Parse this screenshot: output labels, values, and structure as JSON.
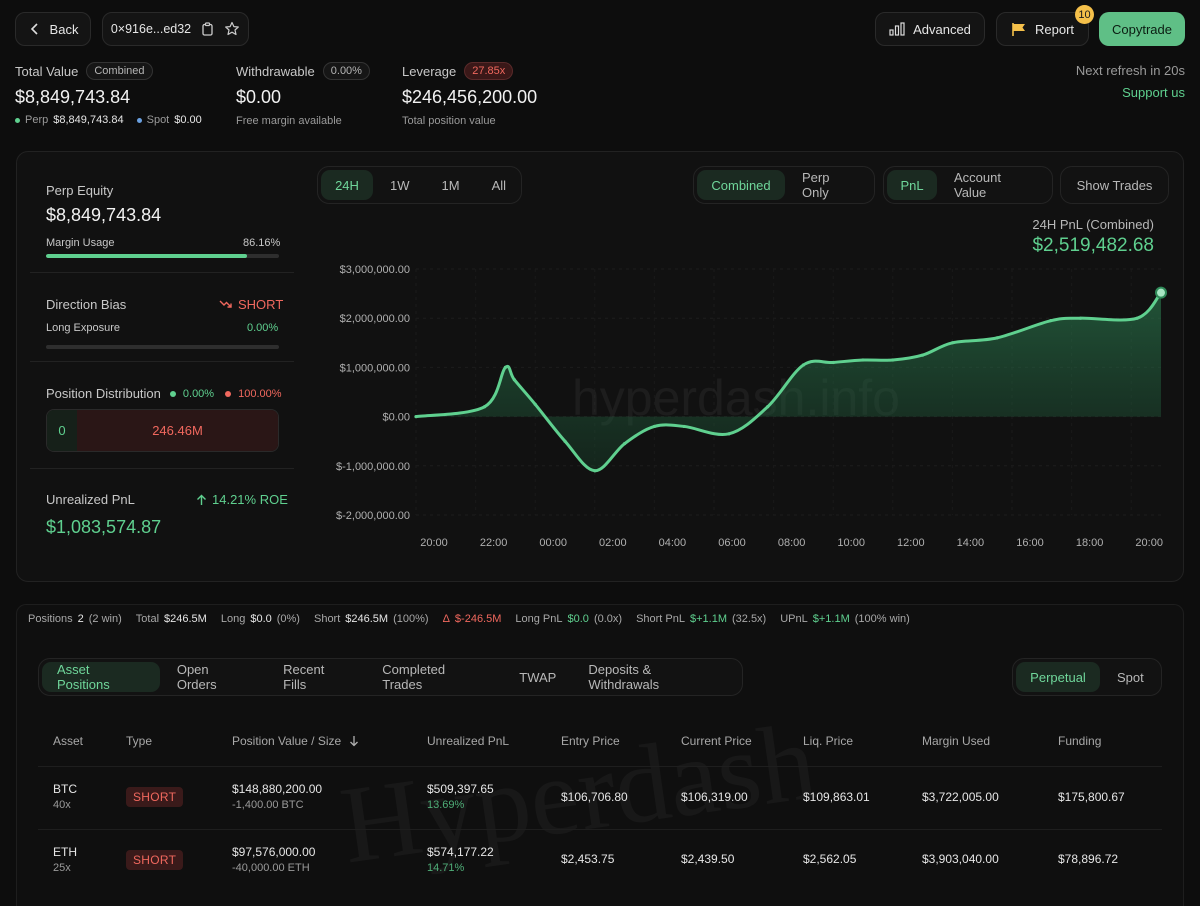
{
  "header": {
    "back_label": "Back",
    "address": "0×916e...ed32",
    "advanced_label": "Advanced",
    "report_label": "Report",
    "report_badge": "10",
    "copytrade_label": "Copytrade",
    "next_refresh": "Next refresh in 20s",
    "support": "Support us"
  },
  "summary": {
    "total_value_label": "Total Value",
    "total_value_pill": "Combined",
    "total_value": "$8,849,743.84",
    "perp_label": "Perp",
    "perp_value": "$8,849,743.84",
    "spot_label": "Spot",
    "spot_value": "$0.00",
    "withdrawable_label": "Withdrawable",
    "withdrawable_pill": "0.00%",
    "withdrawable_value": "$0.00",
    "withdrawable_sub": "Free margin available",
    "leverage_label": "Leverage",
    "leverage_pill": "27.85x",
    "leverage_value": "$246,456,200.00",
    "leverage_sub": "Total position value"
  },
  "left_panel": {
    "perp_equity_label": "Perp Equity",
    "perp_equity": "$8,849,743.84",
    "margin_usage_label": "Margin Usage",
    "margin_usage": "86.16%",
    "margin_usage_fraction": 0.8616,
    "direction_bias_label": "Direction Bias",
    "direction_bias": "SHORT",
    "long_exposure_label": "Long Exposure",
    "long_exposure": "0.00%",
    "long_exposure_fraction": 0,
    "position_dist_label": "Position Distribution",
    "dist_long_pct": "0.00%",
    "dist_short_pct": "100.00%",
    "dist_long_value": "0",
    "dist_short_value": "246.46M",
    "unrealized_label": "Unrealized PnL",
    "roe": "14.21% ROE",
    "unrealized_value": "$1,083,574.87"
  },
  "chart_controls": {
    "ranges": [
      "24H",
      "1W",
      "1M",
      "All"
    ],
    "active_range": "24H",
    "modes": [
      "Combined",
      "Perp Only"
    ],
    "active_mode": "Combined",
    "metrics": [
      "PnL",
      "Account Value"
    ],
    "active_metric": "PnL",
    "show_trades": "Show Trades"
  },
  "chart_data": {
    "type": "area",
    "title": "24H PnL (Combined)",
    "headline_value": "$2,519,482.68",
    "x_ticks": [
      "20:00",
      "22:00",
      "00:00",
      "02:00",
      "04:00",
      "06:00",
      "08:00",
      "10:00",
      "12:00",
      "14:00",
      "16:00",
      "18:00",
      "20:00"
    ],
    "y_ticks": [
      "$3,000,000.00",
      "$2,000,000.00",
      "$1,000,000.00",
      "$0.00",
      "$-1,000,000.00",
      "$-2,000,000.00"
    ],
    "ylim": [
      -2000000,
      3000000
    ],
    "x_hours": [
      0,
      2.3,
      3,
      3.3,
      4,
      5,
      6,
      7,
      8,
      9,
      10.5,
      11.8,
      13,
      14,
      15,
      16,
      17,
      18,
      19.5,
      21.3,
      22.3,
      24.2,
      25
    ],
    "values": [
      0,
      200000,
      1000000,
      750000,
      250000,
      -500000,
      -1100000,
      -550000,
      -200000,
      -200000,
      -350000,
      200000,
      1050000,
      1100000,
      1150000,
      1150000,
      1250000,
      1500000,
      1600000,
      1950000,
      2000000,
      2000000,
      2519482.68
    ],
    "grid": true,
    "watermark": "hyperdash.info"
  },
  "stats_bar": {
    "positions_label": "Positions",
    "positions_value": "2",
    "positions_sub": "(2 win)",
    "total_label": "Total",
    "total_value": "$246.5M",
    "long_label": "Long",
    "long_value": "$0.0",
    "long_sub": "(0%)",
    "short_label": "Short",
    "short_value": "$246.5M",
    "short_sub": "(100%)",
    "delta_label": "Δ",
    "delta_value": "$-246.5M",
    "long_pnl_label": "Long PnL",
    "long_pnl_value": "$0.0",
    "long_pnl_sub": "(0.0x)",
    "short_pnl_label": "Short PnL",
    "short_pnl_value": "$+1.1M",
    "short_pnl_sub": "(32.5x)",
    "upnl_label": "UPnL",
    "upnl_value": "$+1.1M",
    "upnl_sub": "(100% win)"
  },
  "tabs": {
    "items": [
      "Asset Positions",
      "Open Orders",
      "Recent Fills",
      "Completed Trades",
      "TWAP",
      "Deposits & Withdrawals"
    ],
    "active": "Asset Positions",
    "market": [
      "Perpetual",
      "Spot"
    ],
    "active_market": "Perpetual"
  },
  "table": {
    "headers": [
      "Asset",
      "Type",
      "Position Value / Size",
      "Unrealized PnL",
      "Entry Price",
      "Current Price",
      "Liq. Price",
      "Margin Used",
      "Funding"
    ],
    "rows": [
      {
        "asset": "BTC",
        "leverage": "40x",
        "type": "SHORT",
        "value": "$148,880,200.00",
        "size": "-1,400.00 BTC",
        "upnl": "$509,397.65",
        "upnl_pct": "13.69%",
        "entry": "$106,706.80",
        "current": "$106,319.00",
        "liq": "$109,863.01",
        "margin": "$3,722,005.00",
        "funding": "$175,800.67"
      },
      {
        "asset": "ETH",
        "leverage": "25x",
        "type": "SHORT",
        "value": "$97,576,000.00",
        "size": "-40,000.00 ETH",
        "upnl": "$574,177.22",
        "upnl_pct": "14.71%",
        "entry": "$2,453.75",
        "current": "$2,439.50",
        "liq": "$2,562.05",
        "margin": "$3,903,040.00",
        "funding": "$78,896.72"
      }
    ],
    "watermark": "Hyperdash"
  },
  "colors": {
    "accent": "#5fd08f",
    "negative": "#f0685e",
    "background": "#0d0d0d"
  }
}
